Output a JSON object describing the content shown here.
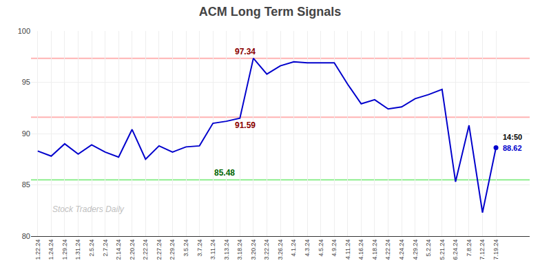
{
  "chart_data": {
    "type": "line",
    "title": "ACM Long Term Signals",
    "categories": [
      "1.22.24",
      "1.24.24",
      "1.29.24",
      "1.31.24",
      "2.5.24",
      "2.7.24",
      "2.14.24",
      "2.20.24",
      "2.22.24",
      "2.27.24",
      "2.29.24",
      "3.5.24",
      "3.7.24",
      "3.11.24",
      "3.13.24",
      "3.18.24",
      "3.20.24",
      "3.22.24",
      "3.26.24",
      "4.1.24",
      "4.3.24",
      "4.5.24",
      "4.9.24",
      "4.11.24",
      "4.16.24",
      "4.18.24",
      "4.22.24",
      "4.24.24",
      "4.29.24",
      "5.2.24",
      "5.21.24",
      "6.24.24",
      "7.8.24",
      "7.12.24",
      "7.19.24"
    ],
    "values": [
      88.3,
      87.8,
      89.0,
      88.0,
      88.9,
      88.2,
      87.7,
      90.4,
      87.5,
      88.8,
      88.2,
      88.7,
      88.8,
      91.0,
      91.2,
      91.5,
      97.34,
      95.8,
      96.6,
      97.0,
      96.9,
      96.9,
      96.9,
      94.8,
      92.9,
      93.3,
      92.4,
      92.6,
      93.4,
      93.8,
      94.3,
      85.3,
      90.8,
      82.3,
      88.62
    ],
    "color": "#0000cc",
    "ylim": [
      80,
      100
    ],
    "yticks": [
      80,
      85,
      90,
      95,
      100
    ],
    "grid": true,
    "reference_lines": [
      {
        "value": 97.34,
        "color": "#ffb3b3",
        "label": "97.34",
        "label_color": "#8b0000"
      },
      {
        "value": 91.59,
        "color": "#ffb3b3",
        "label": "91.59",
        "label_color": "#8b0000"
      },
      {
        "value": 85.48,
        "color": "#90ee90",
        "label": "85.48",
        "label_color": "#006400"
      }
    ],
    "annotations": [
      {
        "text": "14:50",
        "x": "7.19.24",
        "y": 88.62,
        "color": "#000000"
      },
      {
        "text": "88.62",
        "x": "7.19.24",
        "y": 88.62,
        "color": "#0000cc",
        "marker": "circle"
      }
    ],
    "watermark": {
      "text": "Stock Traders Daily",
      "color": "#c0c0c0"
    }
  }
}
